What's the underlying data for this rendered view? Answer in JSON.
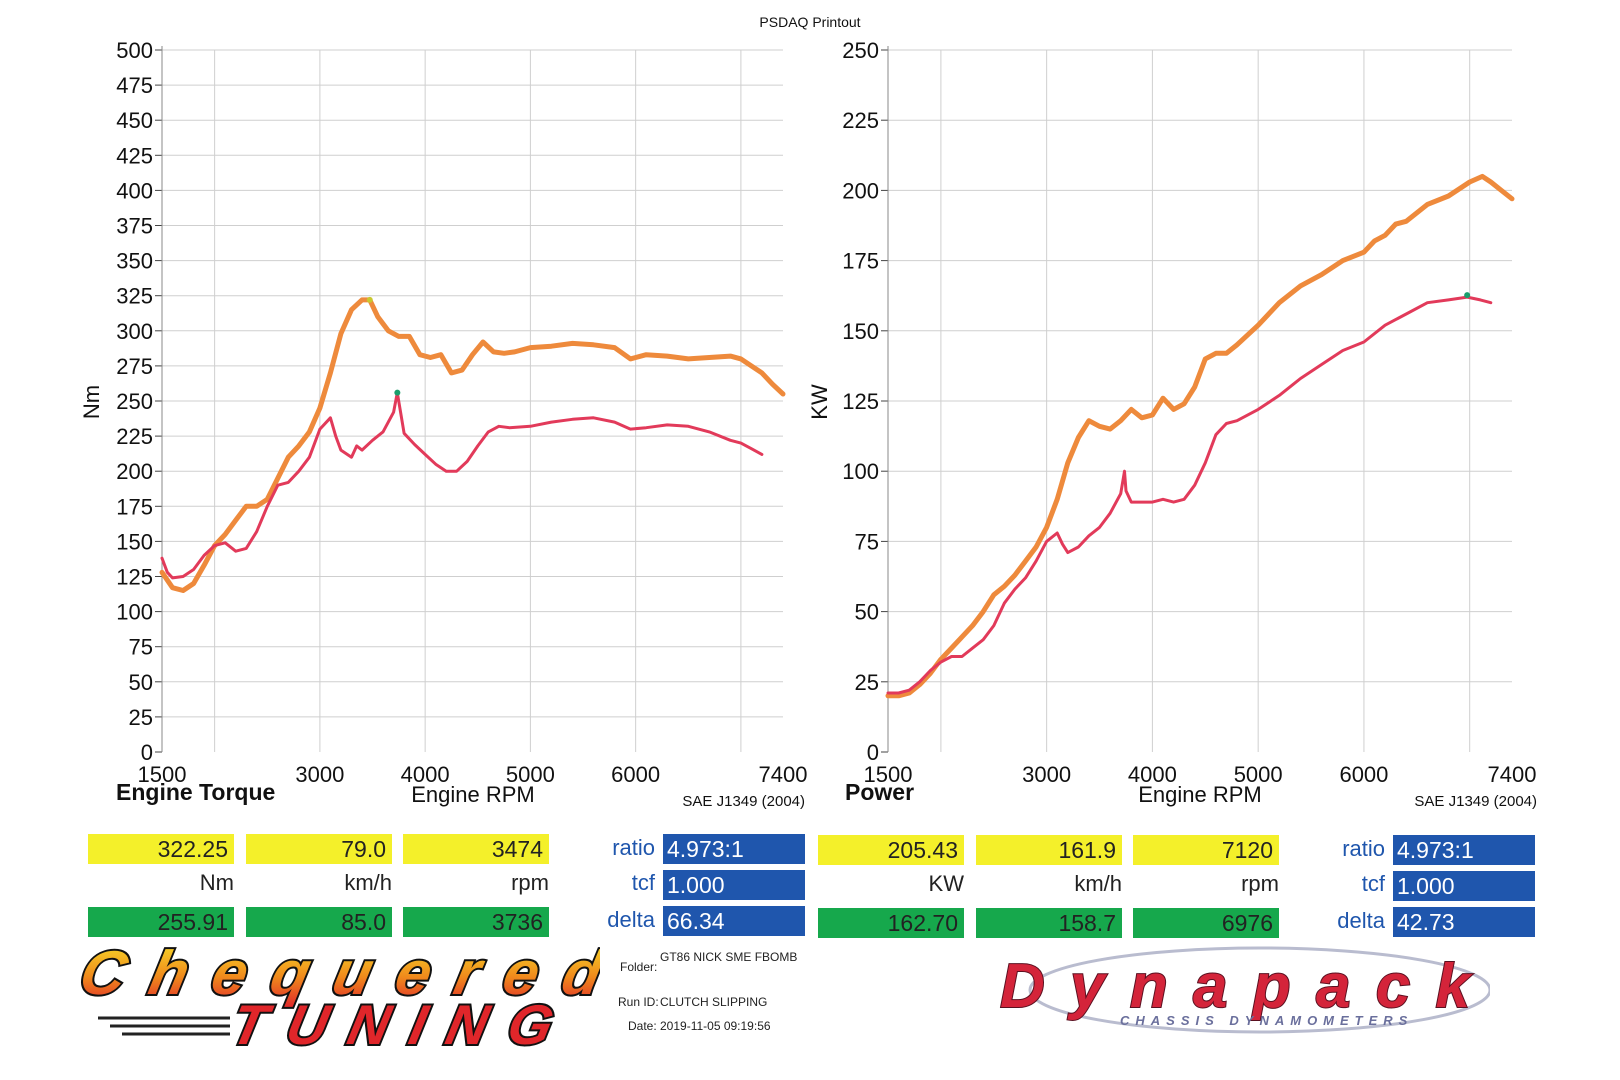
{
  "header": {
    "title": "PSDAQ Printout"
  },
  "chart_data": [
    {
      "type": "line",
      "title": "Engine Torque",
      "xlabel": "Engine RPM",
      "ylabel": "Nm",
      "standard": "SAE J1349 (2004)",
      "xlim": [
        1500,
        7400
      ],
      "ylim": [
        0,
        500
      ],
      "xticks": [
        1500,
        3000,
        4000,
        5000,
        6000,
        7400
      ],
      "yticks": [
        0,
        25,
        50,
        75,
        100,
        125,
        150,
        175,
        200,
        225,
        250,
        275,
        300,
        325,
        350,
        375,
        400,
        425,
        450,
        475,
        500
      ],
      "grid_x": [
        2000,
        3000,
        4000,
        5000,
        6000,
        7000
      ],
      "grid_y_step": 25,
      "series": [
        {
          "color": "#ee8a3c",
          "x": [
            1500,
            1600,
            1700,
            1800,
            1900,
            2000,
            2100,
            2200,
            2300,
            2400,
            2500,
            2600,
            2700,
            2800,
            2900,
            3000,
            3100,
            3200,
            3300,
            3400,
            3474,
            3550,
            3650,
            3750,
            3850,
            3950,
            4050,
            4150,
            4250,
            4350,
            4450,
            4550,
            4650,
            4750,
            4850,
            5000,
            5200,
            5400,
            5600,
            5800,
            5950,
            6100,
            6300,
            6500,
            6700,
            6900,
            7000,
            7100,
            7200,
            7300,
            7400
          ],
          "y": [
            128,
            117,
            115,
            120,
            133,
            147,
            155,
            165,
            175,
            175,
            180,
            195,
            210,
            218,
            228,
            245,
            270,
            298,
            315,
            322,
            322,
            310,
            300,
            296,
            296,
            283,
            281,
            283,
            270,
            272,
            283,
            292,
            285,
            284,
            285,
            288,
            289,
            291,
            290,
            288,
            280,
            283,
            282,
            280,
            281,
            282,
            280,
            275,
            270,
            262,
            255
          ]
        },
        {
          "color": "#e23a5a",
          "x": [
            1500,
            1550,
            1600,
            1700,
            1800,
            1900,
            2000,
            2100,
            2200,
            2300,
            2400,
            2500,
            2600,
            2700,
            2800,
            2900,
            3000,
            3100,
            3150,
            3200,
            3300,
            3350,
            3400,
            3500,
            3600,
            3700,
            3736,
            3800,
            3900,
            4000,
            4100,
            4200,
            4300,
            4400,
            4500,
            4600,
            4700,
            4800,
            5000,
            5200,
            5400,
            5600,
            5800,
            5950,
            6100,
            6300,
            6500,
            6700,
            6900,
            7000,
            7100,
            7200
          ],
          "y": [
            138,
            128,
            124,
            125,
            130,
            140,
            147,
            149,
            143,
            145,
            157,
            175,
            190,
            192,
            200,
            210,
            230,
            238,
            225,
            215,
            210,
            218,
            215,
            222,
            228,
            242,
            256,
            227,
            219,
            212,
            205,
            200,
            200,
            207,
            218,
            228,
            232,
            231,
            232,
            235,
            237,
            238,
            235,
            230,
            231,
            233,
            232,
            228,
            222,
            220,
            216,
            212
          ]
        }
      ],
      "markers": [
        {
          "x": 3474,
          "y": 322,
          "color": "#c9c82e"
        },
        {
          "x": 3736,
          "y": 256,
          "color": "#1a9e6c"
        }
      ]
    },
    {
      "type": "line",
      "title": "Power",
      "xlabel": "Engine RPM",
      "ylabel": "KW",
      "standard": "SAE J1349 (2004)",
      "xlim": [
        1500,
        7400
      ],
      "ylim": [
        0,
        250
      ],
      "xticks": [
        1500,
        3000,
        4000,
        5000,
        6000,
        7400
      ],
      "yticks": [
        0,
        25,
        50,
        75,
        100,
        125,
        150,
        175,
        200,
        225,
        250
      ],
      "grid_x": [
        2000,
        3000,
        4000,
        5000,
        6000,
        7000
      ],
      "grid_y_step": 25,
      "series": [
        {
          "color": "#ee8a3c",
          "x": [
            1500,
            1600,
            1700,
            1800,
            1900,
            2000,
            2100,
            2200,
            2300,
            2400,
            2500,
            2600,
            2700,
            2800,
            2900,
            3000,
            3100,
            3200,
            3300,
            3400,
            3500,
            3600,
            3700,
            3800,
            3900,
            4000,
            4100,
            4200,
            4300,
            4400,
            4500,
            4600,
            4700,
            4800,
            5000,
            5200,
            5400,
            5600,
            5800,
            6000,
            6100,
            6200,
            6300,
            6400,
            6600,
            6800,
            7000,
            7120,
            7200,
            7300,
            7400
          ],
          "y": [
            20,
            20,
            21,
            24,
            28,
            33,
            37,
            41,
            45,
            50,
            56,
            59,
            63,
            68,
            73,
            80,
            90,
            103,
            112,
            118,
            116,
            115,
            118,
            122,
            119,
            120,
            126,
            122,
            124,
            130,
            140,
            142,
            142,
            145,
            152,
            160,
            166,
            170,
            175,
            178,
            182,
            184,
            188,
            189,
            195,
            198,
            203,
            205,
            203,
            200,
            197
          ]
        },
        {
          "color": "#e23a5a",
          "x": [
            1500,
            1600,
            1700,
            1800,
            1900,
            2000,
            2100,
            2200,
            2300,
            2400,
            2500,
            2600,
            2700,
            2800,
            2900,
            3000,
            3100,
            3150,
            3200,
            3300,
            3400,
            3500,
            3600,
            3700,
            3736,
            3750,
            3800,
            3900,
            4000,
            4100,
            4200,
            4300,
            4400,
            4500,
            4600,
            4700,
            4800,
            5000,
            5200,
            5400,
            5600,
            5800,
            6000,
            6200,
            6400,
            6600,
            6800,
            6976,
            7100,
            7200
          ],
          "y": [
            21,
            21,
            22,
            25,
            29,
            32,
            34,
            34,
            37,
            40,
            45,
            53,
            58,
            62,
            68,
            75,
            78,
            74,
            71,
            73,
            77,
            80,
            85,
            92,
            100,
            93,
            89,
            89,
            89,
            90,
            89,
            90,
            95,
            103,
            113,
            117,
            118,
            122,
            127,
            133,
            138,
            143,
            146,
            152,
            156,
            160,
            161,
            162,
            161,
            160
          ]
        }
      ],
      "markers": [
        {
          "x": 6976,
          "y": 162.7,
          "color": "#1a9e6c"
        }
      ]
    }
  ],
  "readouts": {
    "torque": {
      "max": {
        "nm": "322.25",
        "kmh": "79.0",
        "rpm": "3474"
      },
      "units": {
        "nm": "Nm",
        "kmh": "km/h",
        "rpm": "rpm"
      },
      "min": {
        "nm": "255.91",
        "kmh": "85.0",
        "rpm": "3736"
      },
      "labels": {
        "ratio": "ratio",
        "tcf": "tcf",
        "delta": "delta"
      },
      "values": {
        "ratio": "4.973:1",
        "tcf": "1.000",
        "delta": "66.34"
      }
    },
    "power": {
      "max": {
        "kw": "205.43",
        "kmh": "161.9",
        "rpm": "7120"
      },
      "units": {
        "kw": "KW",
        "kmh": "km/h",
        "rpm": "rpm"
      },
      "min": {
        "kw": "162.70",
        "kmh": "158.7",
        "rpm": "6976"
      },
      "labels": {
        "ratio": "ratio",
        "tcf": "tcf",
        "delta": "delta"
      },
      "values": {
        "ratio": "4.973:1",
        "tcf": "1.000",
        "delta": "42.73"
      }
    }
  },
  "run_info": {
    "folder_label": "Folder:",
    "folder": "GT86 NICK SME FBOMB",
    "run_label": "Run ID:",
    "run": "CLUTCH SLIPPING",
    "date_label": "Date:",
    "date": "2019-11-05 09:19:56"
  },
  "logos": {
    "left": {
      "line1": "Chequered",
      "line2": "TUNING",
      "colors": [
        "#f7d41e",
        "#f08a1c",
        "#e0262a"
      ]
    },
    "right": {
      "main": "Dynapack",
      "sub": "CHASSIS DYNAMOMETERS",
      "colors": [
        "#d4243a",
        "#6a6f9c"
      ]
    }
  }
}
